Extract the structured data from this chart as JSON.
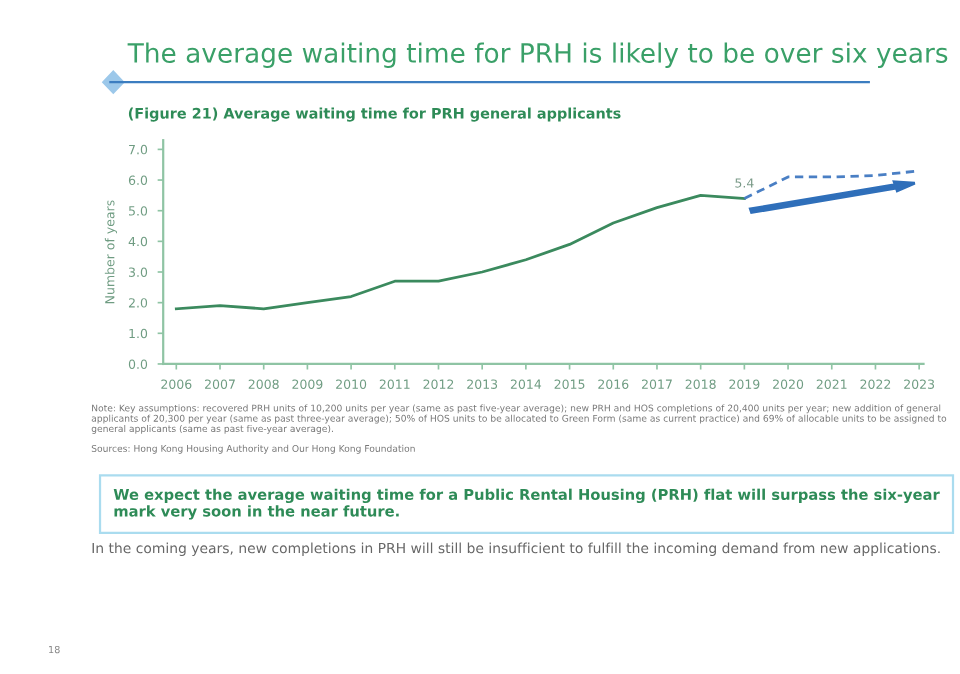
{
  "chart_data": {
    "type": "line",
    "title": "The average waiting time for PRH is likely to be over six years",
    "subtitle": "(Figure 21) Average waiting time for PRH general applicants",
    "ylabel": "Number of years",
    "categories": [
      "2006",
      "2007",
      "2008",
      "2009",
      "2010",
      "2011",
      "2012",
      "2013",
      "2014",
      "2015",
      "2016",
      "2017",
      "2018",
      "2019",
      "2020",
      "2021",
      "2022",
      "2023"
    ],
    "series": [
      {
        "color": "#3b8a5e",
        "line_style": "solid",
        "values": [
          1.8,
          1.9,
          1.8,
          2.0,
          2.2,
          2.7,
          2.7,
          3.0,
          3.4,
          3.9,
          4.6,
          5.1,
          5.5,
          5.4,
          null,
          null,
          null,
          null
        ],
        "value_labels": [
          null,
          null,
          null,
          null,
          null,
          null,
          null,
          null,
          null,
          null,
          null,
          null,
          null,
          "5.4",
          null,
          null,
          null,
          null
        ]
      },
      {
        "color": "#4a7fc4",
        "line_style": "dashed",
        "values": [
          null,
          null,
          null,
          null,
          null,
          null,
          null,
          null,
          null,
          null,
          null,
          null,
          null,
          5.4,
          6.1,
          6.1,
          6.15,
          6.3
        ]
      }
    ],
    "ylim": [
      0,
      7.3
    ],
    "yticks": [
      {
        "value": 0,
        "label": "0.0"
      },
      {
        "value": 1,
        "label": "1.0"
      },
      {
        "value": 2,
        "label": "2.0"
      },
      {
        "value": 3,
        "label": "3.0"
      },
      {
        "value": 4,
        "label": "4.0"
      },
      {
        "value": 5,
        "label": "5.0"
      },
      {
        "value": 6,
        "label": "6.0"
      },
      {
        "value": 7,
        "label": "7.0"
      }
    ],
    "grid": false,
    "legend": false,
    "marker": "none",
    "annotations": [
      "Note: Key assumptions: recovered PRH units of 10,200 units per year (same as past five-year average); new PRH and HOS completions of 20,400 units per year; new addition of general applicants of 20,300 per year (same as past three-year average); 50% of HOS units to be allocated to Green Form (same as current practice) and 69% of allocable units to be assigned to general applicants (same as past five-year average).",
      "Sources: Hong Kong Housing Authority and Our Hong Kong Foundation",
      "We expect the average waiting time for a Public Rental Housing (PRH) flat will surpass the six-year mark very soon in the near future.",
      "In the coming years, new completions in PRH will still be insufficient to fulfill the incoming demand from new applications.",
      "18"
    ]
  }
}
